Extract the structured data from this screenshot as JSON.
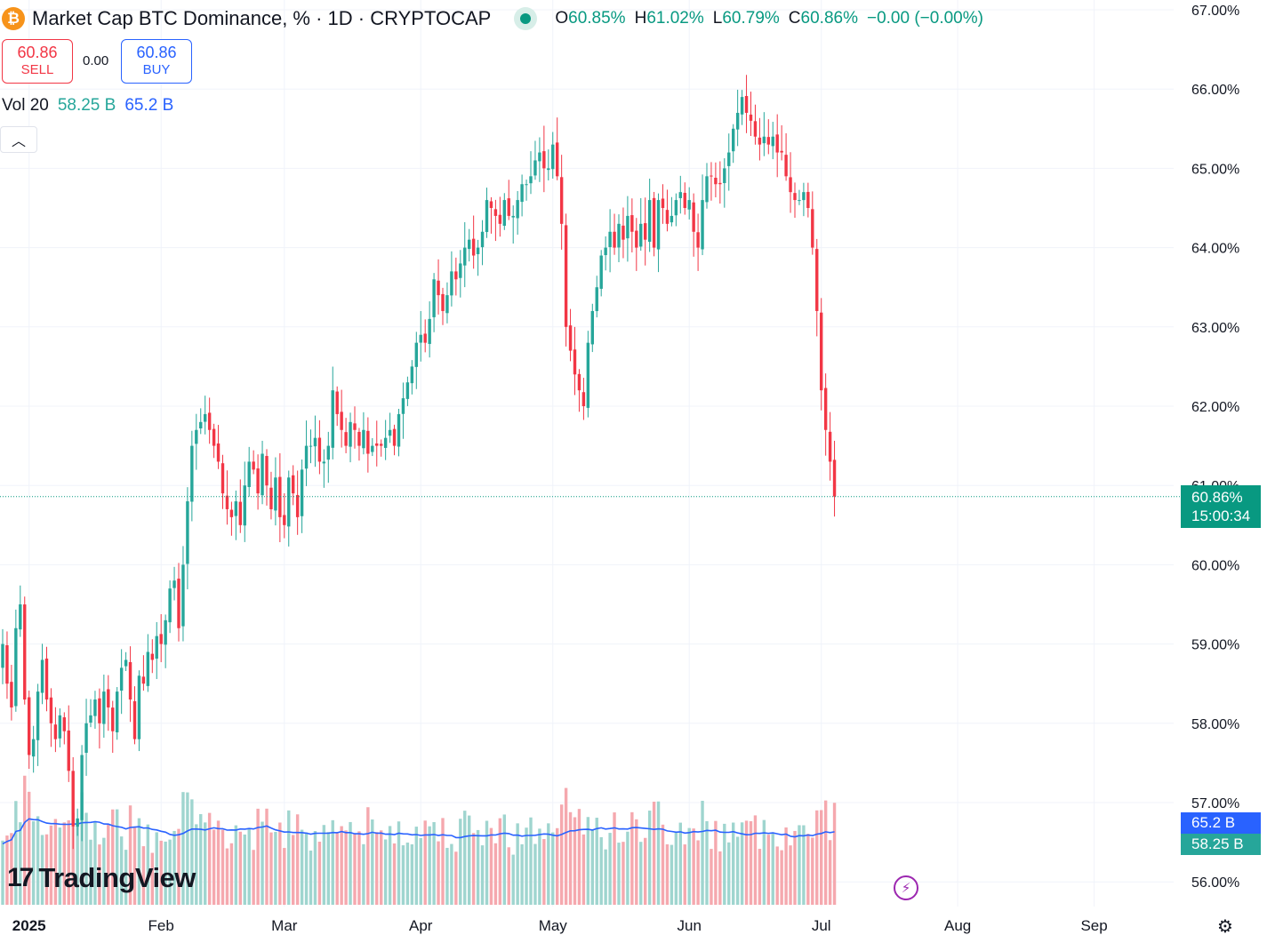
{
  "header": {
    "coin_symbol": "₿",
    "title": "Market Cap BTC Dominance, % · 1D · CRYPTOCAP",
    "ohlc": [
      {
        "key": "O",
        "value": "60.85%"
      },
      {
        "key": "H",
        "value": "61.02%"
      },
      {
        "key": "L",
        "value": "60.79%"
      },
      {
        "key": "C",
        "value": "60.86%"
      },
      {
        "key": "",
        "value": "−0.00 (−0.00%)"
      }
    ]
  },
  "trade": {
    "sell_price": "60.86",
    "sell_label": "SELL",
    "spread": "0.00",
    "buy_price": "60.86",
    "buy_label": "BUY"
  },
  "volume_legend": {
    "label": "Vol 20",
    "volume": "58.25 B",
    "ma": "65.2 B"
  },
  "price_labels": {
    "current": "60.86%",
    "countdown": "15:00:34",
    "ma": "65.2 B",
    "volume": "58.25 B"
  },
  "branding": {
    "logo_mark": "17",
    "logo_text": "TradingView"
  },
  "colors": {
    "up": "#26a69a",
    "down": "#f23645",
    "vol_up": "#9fd5cf",
    "vol_down": "#f5a8ae",
    "ma_line": "#2962ff",
    "grid": "#f0f3fa",
    "last_line": "#089981"
  },
  "chart_data": {
    "type": "candlestick",
    "title": "Market Cap BTC Dominance, %",
    "interval": "1D",
    "y_unit": "%",
    "ylim": [
      55.7,
      67.1
    ],
    "y_ticks": [
      "56.00%",
      "57.00%",
      "58.00%",
      "59.00%",
      "60.00%",
      "61.00%",
      "62.00%",
      "63.00%",
      "64.00%",
      "65.00%",
      "66.00%",
      "67.00%"
    ],
    "x_ticks": [
      "2025",
      "Feb",
      "Mar",
      "Apr",
      "May",
      "Jun",
      "Jul",
      "Aug",
      "Sep"
    ],
    "last_close": 60.86,
    "grid": true,
    "close": [
      59.0,
      58.5,
      58.2,
      59.2,
      59.5,
      58.3,
      57.6,
      57.8,
      58.4,
      58.8,
      58.3,
      58.0,
      57.8,
      58.1,
      57.9,
      57.4,
      56.7,
      56.8,
      57.6,
      58.0,
      58.1,
      58.3,
      58.0,
      58.4,
      58.2,
      57.9,
      58.4,
      58.7,
      58.8,
      58.3,
      57.8,
      58.6,
      58.5,
      58.9,
      58.8,
      59.1,
      59.0,
      59.3,
      59.7,
      59.8,
      59.2,
      60.0,
      60.8,
      61.5,
      61.7,
      61.8,
      61.9,
      61.7,
      61.5,
      61.3,
      60.9,
      60.7,
      60.6,
      60.8,
      60.5,
      61.0,
      61.3,
      61.2,
      60.9,
      61.4,
      61.0,
      60.7,
      61.1,
      60.6,
      60.5,
      61.1,
      60.9,
      60.6,
      61.2,
      61.5,
      61.5,
      61.6,
      61.3,
      61.3,
      61.5,
      62.2,
      61.9,
      61.7,
      61.5,
      61.8,
      61.7,
      61.5,
      61.7,
      61.4,
      61.5,
      61.5,
      61.5,
      61.6,
      61.7,
      61.5,
      61.9,
      62.1,
      62.3,
      62.5,
      62.8,
      62.9,
      62.8,
      63.1,
      63.6,
      63.4,
      63.2,
      63.4,
      63.7,
      63.6,
      63.8,
      64.0,
      64.1,
      63.9,
      64.0,
      64.2,
      64.6,
      64.5,
      64.4,
      64.3,
      64.6,
      64.4,
      64.4,
      64.6,
      64.8,
      64.8,
      64.9,
      65.1,
      65.2,
      65.0,
      65.0,
      65.3,
      64.9,
      64.3,
      63.0,
      62.7,
      62.4,
      62.2,
      62.0,
      62.8,
      63.2,
      63.5,
      63.9,
      64.0,
      64.2,
      64.0,
      64.3,
      64.1,
      64.4,
      64.2,
      64.0,
      64.3,
      64.1,
      64.6,
      64.0,
      64.6,
      64.5,
      64.3,
      64.4,
      64.6,
      64.7,
      64.5,
      64.6,
      64.2,
      64.0,
      64.6,
      64.9,
      64.9,
      64.8,
      64.8,
      65.0,
      65.2,
      65.5,
      65.7,
      65.9,
      65.7,
      65.6,
      65.4,
      65.3,
      65.4,
      65.3,
      65.4,
      65.2,
      65.2,
      64.9,
      64.7,
      64.6,
      64.6,
      64.7,
      64.5,
      64.0,
      63.2,
      62.2,
      61.7,
      61.3,
      60.86
    ]
  }
}
